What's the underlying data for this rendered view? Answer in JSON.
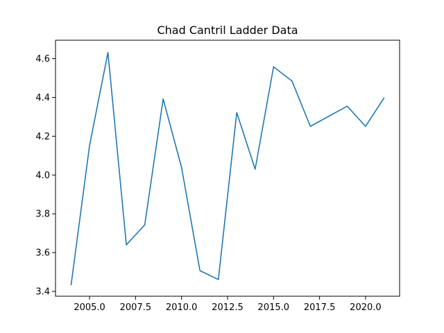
{
  "chart_data": {
    "type": "line",
    "title": "Chad Cantril Ladder Data",
    "xlabel": "",
    "ylabel": "",
    "xlim": [
      2003.15,
      2021.85
    ],
    "ylim": [
      3.375,
      4.695
    ],
    "xticks": [
      2005.0,
      2007.5,
      2010.0,
      2012.5,
      2015.0,
      2017.5,
      2020.0
    ],
    "xtick_labels": [
      "2005.0",
      "2007.5",
      "2010.0",
      "2012.5",
      "2015.0",
      "2017.5",
      "2020.0"
    ],
    "yticks": [
      3.4,
      3.6,
      3.8,
      4.0,
      4.2,
      4.4,
      4.6
    ],
    "ytick_labels": [
      "3.4",
      "3.6",
      "3.8",
      "4.0",
      "4.2",
      "4.4",
      "4.6"
    ],
    "grid": false,
    "series": [
      {
        "color": "#1f77b4",
        "x": [
          2004,
          2005,
          2006,
          2007,
          2008,
          2009,
          2010,
          2011,
          2012,
          2013,
          2014,
          2015,
          2016,
          2017,
          2019,
          2020,
          2021
        ],
        "y": [
          3.435,
          4.152,
          4.632,
          3.64,
          3.743,
          4.392,
          4.039,
          3.507,
          3.461,
          4.322,
          4.03,
          4.558,
          4.485,
          4.251,
          4.355,
          4.251,
          4.397
        ]
      }
    ]
  }
}
